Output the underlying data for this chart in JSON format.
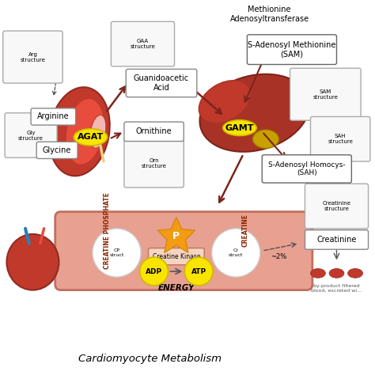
{
  "title": "Cardiomyocyte Metabolism",
  "bg_color": "#ffffff",
  "kidney_color": "#c0392b",
  "liver_color": "#a93226",
  "muscle_color": "#e8a090",
  "heart_color": "#c0392b",
  "arrow_color": "#7b241c",
  "label_bg": "#ffffff",
  "highlight_yellow": "#f9e400",
  "enzyme_bg": "#f9e400",
  "labels": {
    "arginine": "Arginine",
    "glycine": "Glycine",
    "agat": "AGAT",
    "ornithine": "Ornithine",
    "guanidoacetic": "Guanidoacetic\nAcid",
    "gamt": "GAMT",
    "sam": "S-Adenosyl Methionine\n(SAM)",
    "sah": "S-Adenosyl Homocys-\n(SAH)",
    "met_enzyme": "Methionine\nAdenosyltransferase",
    "creatine_phosphate": "CREATINE PHOSPHATE",
    "creatine": "CREATINE",
    "creatine_kinase": "Creatine Kinase",
    "adp": "ADP",
    "atp": "ATP",
    "energy": "ENERGY",
    "creatinine": "Creatinine",
    "byproduct": "by-product filtered\nblood, excreted wi...",
    "two_percent": "~2%"
  },
  "figsize": [
    4.74,
    4.74
  ],
  "dpi": 100
}
